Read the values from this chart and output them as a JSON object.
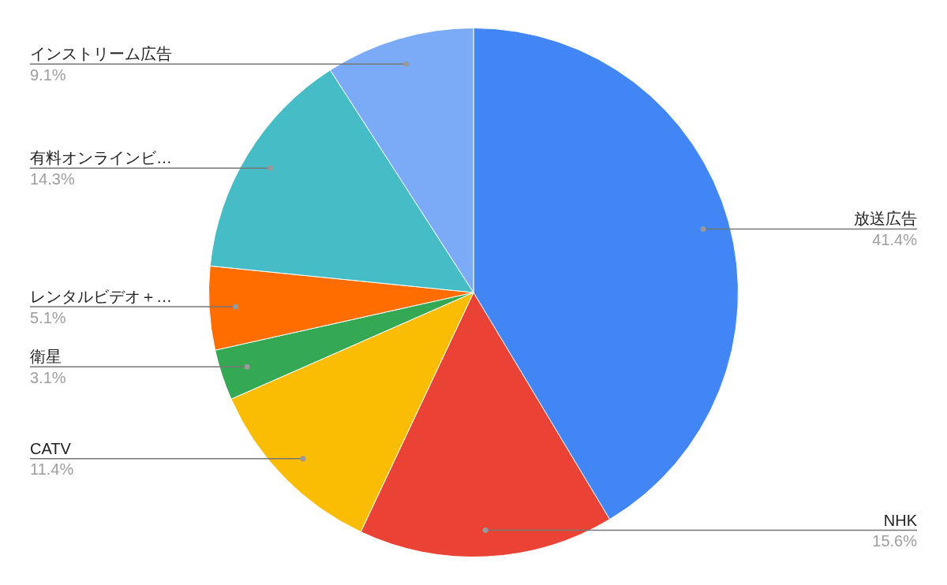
{
  "chart_data": {
    "type": "pie",
    "categories": [
      "放送広告",
      "NHK",
      "CATV",
      "衛星",
      "レンタルビデオ＋…",
      "有料オンラインビ…",
      "インストリーム広告"
    ],
    "values": [
      41.4,
      15.6,
      11.4,
      3.1,
      5.1,
      14.3,
      9.1
    ],
    "value_labels": [
      "41.4%",
      "15.6%",
      "11.4%",
      "3.1%",
      "5.1%",
      "14.3%",
      "9.1%"
    ],
    "colors": [
      "#4285f4",
      "#ea4335",
      "#fbbc04",
      "#34a853",
      "#ff6d01",
      "#46bdc6",
      "#7baaf7"
    ],
    "legend": false
  }
}
